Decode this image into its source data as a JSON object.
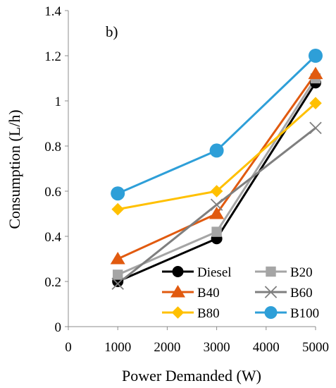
{
  "chart_data": {
    "type": "line",
    "panel_label": "b)",
    "xlabel": "Power Demanded (W)",
    "ylabel": "Consumption (L/h)",
    "xlim": [
      0,
      5000
    ],
    "ylim": [
      0,
      1.4
    ],
    "xticks": [
      0,
      1000,
      2000,
      3000,
      4000,
      5000
    ],
    "yticks": [
      0,
      0.2,
      0.4,
      0.6,
      0.8,
      1,
      1.2,
      1.4
    ],
    "ytick_labels": [
      "0",
      "0.2",
      "0.4",
      "0.6",
      "0.8",
      "1",
      "1.2",
      "1.4"
    ],
    "grid": false,
    "legend_position": "bottom-right",
    "x": [
      1000,
      3000,
      5000
    ],
    "series": [
      {
        "name": "Diesel",
        "values": [
          0.2,
          0.39,
          1.08
        ],
        "color": "#000000",
        "marker": "circle"
      },
      {
        "name": "B20",
        "values": [
          0.23,
          0.42,
          1.1
        ],
        "color": "#A5A5A5",
        "marker": "square"
      },
      {
        "name": "B40",
        "values": [
          0.3,
          0.5,
          1.12
        ],
        "color": "#E15A0F",
        "marker": "triangle"
      },
      {
        "name": "B60",
        "values": [
          0.19,
          0.54,
          0.88
        ],
        "color": "#7F7F7F",
        "marker": "x"
      },
      {
        "name": "B80",
        "values": [
          0.52,
          0.6,
          0.99
        ],
        "color": "#FFC000",
        "marker": "diamond"
      },
      {
        "name": "B100",
        "values": [
          0.59,
          0.78,
          1.2
        ],
        "color": "#2E9FD8",
        "marker": "circle"
      }
    ]
  }
}
